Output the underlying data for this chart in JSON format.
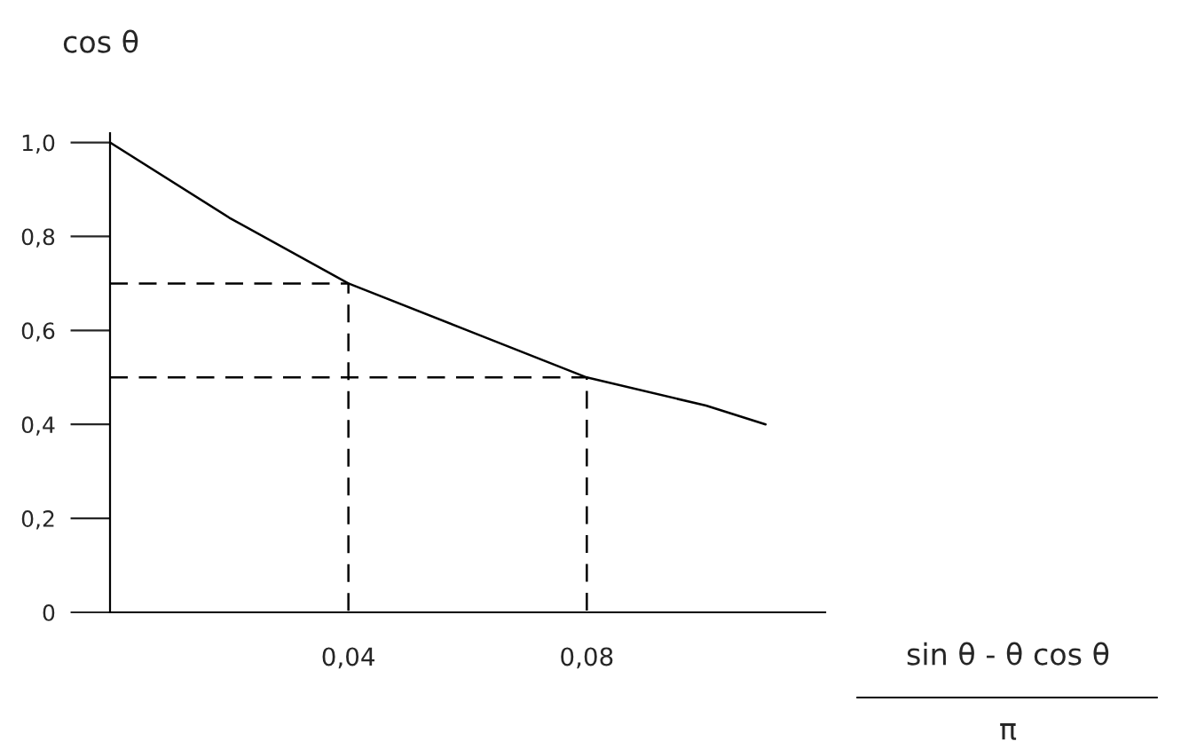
{
  "chart_data": {
    "type": "line",
    "ylabel": "cos θ",
    "xlabel": "sin θ - θ cos θ",
    "annotations": [
      "π"
    ],
    "series": [
      {
        "color": "#000000",
        "line_style": "solid",
        "x": [
          0,
          0.02,
          0.04,
          0.06,
          0.08,
          0.1,
          0.11
        ],
        "values": [
          1.0,
          0.84,
          0.7,
          0.6,
          0.5,
          0.44,
          0.4
        ]
      },
      {
        "color": "#000000",
        "line_style": "dashed",
        "x": [
          0,
          0.04,
          0.04
        ],
        "values": [
          0.7,
          0.7,
          0
        ]
      },
      {
        "color": "#000000",
        "line_style": "dashed",
        "x": [
          0,
          0.08,
          0.08
        ],
        "values": [
          0.5,
          0.5,
          0
        ]
      }
    ],
    "xlim": [
      0,
      0.12
    ],
    "xticks": [
      {
        "value": 0.04,
        "label": "0,04"
      },
      {
        "value": 0.08,
        "label": "0,08"
      }
    ],
    "ylim": [
      0,
      1.02
    ],
    "yticks": [
      0,
      {
        "value": 0.2,
        "label": "0,2"
      },
      {
        "value": 0.4,
        "label": "0,4"
      },
      {
        "value": 0.6,
        "label": "0,6"
      },
      {
        "value": 0.8,
        "label": "0,8"
      },
      {
        "value": 1.0,
        "label": "1,0"
      }
    ],
    "grid": false,
    "legend": false,
    "marker": "none"
  }
}
